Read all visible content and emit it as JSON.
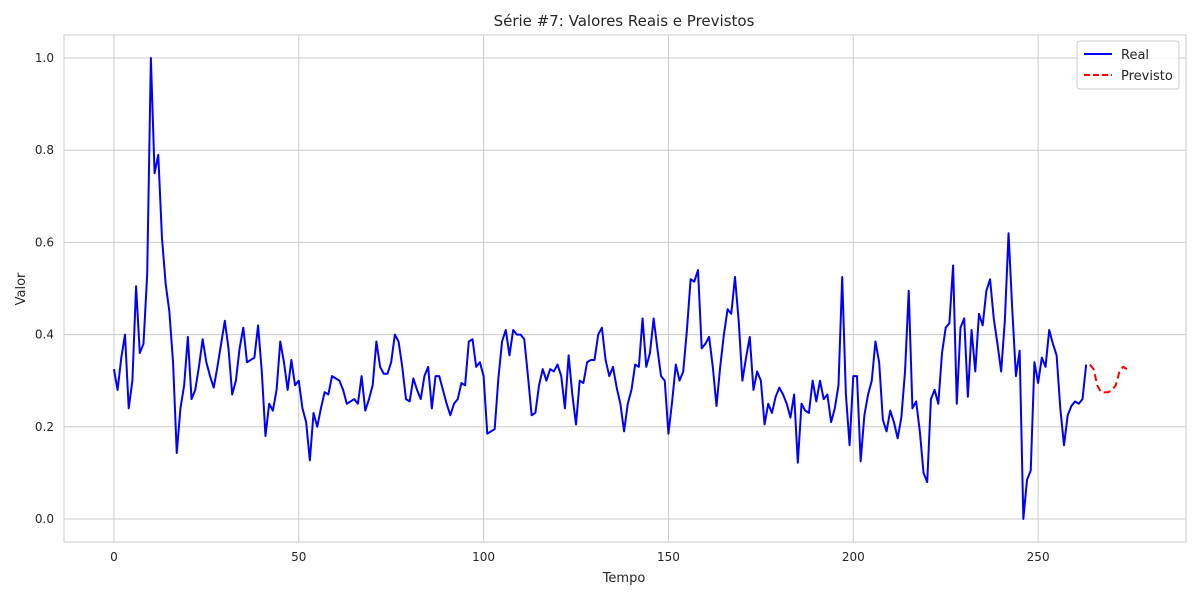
{
  "chart_data": {
    "type": "line",
    "title": "Série #7: Valores Reais e Previstos",
    "xlabel": "Tempo",
    "ylabel": "Valor",
    "xlim": [
      -13.5,
      290
    ],
    "ylim": [
      -0.05,
      1.05
    ],
    "xticks": [
      0,
      50,
      100,
      150,
      200,
      250
    ],
    "yticks": [
      0.0,
      0.2,
      0.4,
      0.6,
      0.8,
      1.0
    ],
    "xtick_labels": [
      "0",
      "50",
      "100",
      "150",
      "200",
      "250"
    ],
    "ytick_labels": [
      "0.0",
      "0.2",
      "0.4",
      "0.6",
      "0.8",
      "1.0"
    ],
    "grid": true,
    "legend_position": "top-right",
    "series": [
      {
        "name": "Real",
        "color": "#0000ff",
        "style": "solid",
        "x_start": 0,
        "values": [
          0.325,
          0.28,
          0.35,
          0.4,
          0.24,
          0.3,
          0.505,
          0.36,
          0.38,
          0.53,
          1.0,
          0.75,
          0.79,
          0.61,
          0.51,
          0.45,
          0.34,
          0.143,
          0.24,
          0.29,
          0.395,
          0.26,
          0.28,
          0.33,
          0.39,
          0.34,
          0.31,
          0.285,
          0.33,
          0.38,
          0.43,
          0.37,
          0.27,
          0.3,
          0.37,
          0.415,
          0.34,
          0.345,
          0.35,
          0.42,
          0.32,
          0.18,
          0.25,
          0.235,
          0.28,
          0.385,
          0.34,
          0.28,
          0.345,
          0.29,
          0.3,
          0.24,
          0.21,
          0.127,
          0.23,
          0.2,
          0.24,
          0.275,
          0.27,
          0.31,
          0.305,
          0.3,
          0.28,
          0.25,
          0.255,
          0.26,
          0.25,
          0.31,
          0.235,
          0.26,
          0.29,
          0.385,
          0.33,
          0.315,
          0.315,
          0.34,
          0.4,
          0.385,
          0.33,
          0.26,
          0.255,
          0.305,
          0.28,
          0.26,
          0.31,
          0.33,
          0.24,
          0.31,
          0.31,
          0.28,
          0.25,
          0.225,
          0.25,
          0.26,
          0.295,
          0.29,
          0.385,
          0.39,
          0.33,
          0.34,
          0.31,
          0.185,
          0.19,
          0.195,
          0.305,
          0.385,
          0.41,
          0.355,
          0.41,
          0.4,
          0.4,
          0.39,
          0.31,
          0.225,
          0.23,
          0.29,
          0.325,
          0.3,
          0.325,
          0.32,
          0.335,
          0.31,
          0.24,
          0.355,
          0.27,
          0.205,
          0.3,
          0.295,
          0.34,
          0.345,
          0.345,
          0.4,
          0.415,
          0.345,
          0.31,
          0.33,
          0.285,
          0.25,
          0.19,
          0.25,
          0.28,
          0.335,
          0.33,
          0.435,
          0.33,
          0.36,
          0.435,
          0.37,
          0.31,
          0.3,
          0.185,
          0.255,
          0.335,
          0.3,
          0.32,
          0.41,
          0.52,
          0.515,
          0.54,
          0.37,
          0.38,
          0.395,
          0.33,
          0.245,
          0.33,
          0.4,
          0.455,
          0.445,
          0.525,
          0.43,
          0.3,
          0.35,
          0.395,
          0.28,
          0.32,
          0.3,
          0.205,
          0.25,
          0.23,
          0.265,
          0.285,
          0.27,
          0.25,
          0.22,
          0.27,
          0.122,
          0.25,
          0.235,
          0.23,
          0.3,
          0.255,
          0.3,
          0.26,
          0.27,
          0.21,
          0.24,
          0.29,
          0.525,
          0.27,
          0.16,
          0.31,
          0.31,
          0.125,
          0.225,
          0.27,
          0.3,
          0.385,
          0.34,
          0.215,
          0.19,
          0.235,
          0.21,
          0.175,
          0.22,
          0.32,
          0.495,
          0.24,
          0.255,
          0.19,
          0.1,
          0.08,
          0.26,
          0.28,
          0.25,
          0.36,
          0.415,
          0.425,
          0.55,
          0.25,
          0.415,
          0.435,
          0.265,
          0.41,
          0.32,
          0.445,
          0.42,
          0.495,
          0.52,
          0.435,
          0.38,
          0.32,
          0.43,
          0.62,
          0.455,
          0.31,
          0.365,
          0.0,
          0.085,
          0.105,
          0.34,
          0.295,
          0.35,
          0.33,
          0.41,
          0.38,
          0.355,
          0.24,
          0.16,
          0.225,
          0.245,
          0.255,
          0.25,
          0.26,
          0.335
        ]
      },
      {
        "name": "Previsto",
        "color": "#ff0000",
        "style": "dashed",
        "x_start": 264,
        "values": [
          0.335,
          0.325,
          0.29,
          0.275,
          0.275,
          0.275,
          0.28,
          0.29,
          0.32,
          0.33,
          0.325
        ]
      }
    ]
  }
}
